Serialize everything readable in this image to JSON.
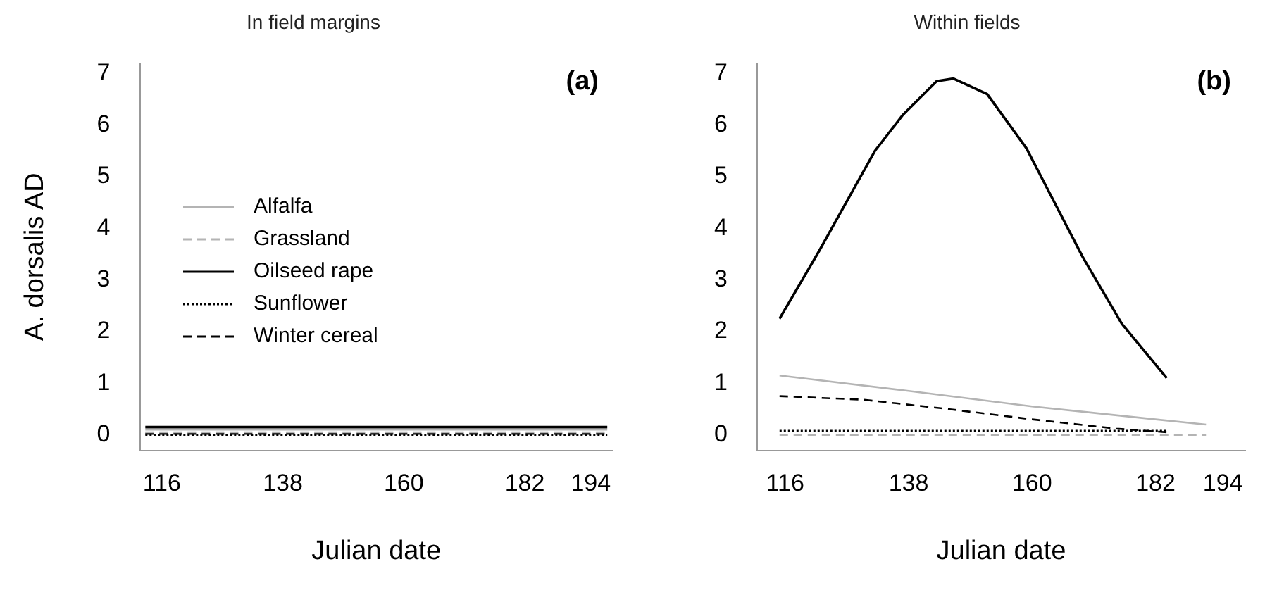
{
  "chart_data": [
    {
      "type": "line",
      "title": "In field margins",
      "xlabel": "Julian date",
      "ylabel": "A. dorsalis AD",
      "annotations": [
        "(a)"
      ],
      "xlim": [
        112,
        198
      ],
      "xticks": [
        116,
        138,
        160,
        182,
        194
      ],
      "ylim": [
        -0.3,
        7.2
      ],
      "yticks": [
        0,
        1,
        2,
        3,
        4,
        5,
        6,
        7
      ],
      "grid": false,
      "legend": "left",
      "marker": "none",
      "series": [
        {
          "name": "Alfalfa",
          "color": "#b4b4b4",
          "line_style": "solid",
          "x": [
            113,
            197
          ],
          "values": [
            0.1,
            0.1
          ]
        },
        {
          "name": "Grassland",
          "color": "#b4b4b4",
          "line_style": "dashed",
          "x": [
            113,
            197
          ],
          "values": [
            0.05,
            0.05
          ]
        },
        {
          "name": "Oilseed rape",
          "color": "#000000",
          "line_style": "solid",
          "x": [
            113,
            197
          ],
          "values": [
            0.15,
            0.15
          ]
        },
        {
          "name": "Sunflower",
          "color": "#000000",
          "line_style": "dotted",
          "x": [
            113,
            197
          ],
          "values": [
            0.0,
            0.0
          ]
        },
        {
          "name": "Winter cereal",
          "color": "#000000",
          "line_style": "dashed",
          "x": [
            113,
            197
          ],
          "values": [
            0.02,
            0.02
          ]
        }
      ]
    },
    {
      "type": "line",
      "title": "Within fields",
      "xlabel": "Julian date",
      "annotations": [
        "(b)"
      ],
      "xlim": [
        111,
        198
      ],
      "xticks": [
        116,
        138,
        160,
        182,
        194
      ],
      "ylim": [
        -0.3,
        7.2
      ],
      "yticks": [
        0,
        1,
        2,
        3,
        4,
        5,
        6,
        7
      ],
      "grid": false,
      "marker": "none",
      "series": [
        {
          "color": "#b4b4b4",
          "line_style": "solid",
          "x": [
            115,
            138,
            160,
            182,
            191
          ],
          "values": [
            1.15,
            0.85,
            0.55,
            0.3,
            0.2
          ]
        },
        {
          "color": "#b4b4b4",
          "line_style": "dashed",
          "x": [
            115,
            191
          ],
          "values": [
            0.0,
            0.0
          ]
        },
        {
          "color": "#000000",
          "line_style": "solid",
          "x": [
            115,
            122,
            132,
            137,
            143,
            146,
            152,
            159,
            169,
            176,
            184
          ],
          "values": [
            2.25,
            3.55,
            5.5,
            6.2,
            6.85,
            6.9,
            6.6,
            5.55,
            3.45,
            2.15,
            1.1
          ]
        },
        {
          "color": "#000000",
          "line_style": "dotted",
          "x": [
            115,
            184
          ],
          "values": [
            0.08,
            0.08
          ]
        },
        {
          "color": "#000000",
          "line_style": "dashed",
          "x": [
            115,
            130,
            145,
            160,
            175,
            184
          ],
          "values": [
            0.75,
            0.68,
            0.5,
            0.3,
            0.12,
            0.05
          ]
        }
      ]
    }
  ]
}
